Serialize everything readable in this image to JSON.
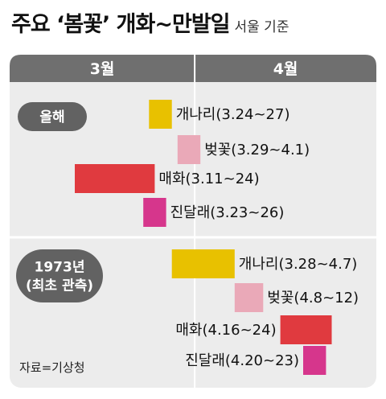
{
  "header": {
    "title": "주요 ‘봄꽃’ 개화~만발일",
    "subtitle": "서울 기준"
  },
  "source": "자료=기상청",
  "colors": {
    "header_band": "#6f6f6f",
    "panel_bg": "#ececec",
    "pill_bg": "#626262",
    "개나리": "#e8c100",
    "벚꽃": "#eaa9b8",
    "매화": "#e03a3f",
    "진달래": "#d6368c"
  },
  "chart_data": {
    "type": "bar",
    "subtype": "gantt",
    "x_axis": {
      "type": "date",
      "range": [
        "03-01",
        "04-30"
      ],
      "tick_labels": [
        "3월",
        "4월"
      ]
    },
    "groups": [
      {
        "name": "올해",
        "items": [
          {
            "flower": "개나리",
            "label": "개나리(3.24~27)",
            "start": "03-24",
            "end": "03-27"
          },
          {
            "flower": "벚꽃",
            "label": "벚꽃(3.29~4.1)",
            "start": "03-29",
            "end": "04-01"
          },
          {
            "flower": "매화",
            "label": "매화(3.11~24)",
            "start": "03-11",
            "end": "03-24"
          },
          {
            "flower": "진달래",
            "label": "진달래(3.23~26)",
            "start": "03-23",
            "end": "03-26"
          }
        ]
      },
      {
        "name": "1973년 (최초 관측)",
        "name_lines": [
          "1973년",
          "(최초 관측)"
        ],
        "items": [
          {
            "flower": "개나리",
            "label": "개나리(3.28~4.7)",
            "start": "03-28",
            "end": "04-07"
          },
          {
            "flower": "벚꽃",
            "label": "벚꽃(4.8~12)",
            "start": "04-08",
            "end": "04-12"
          },
          {
            "flower": "매화",
            "label": "매화(4.16~24)",
            "start": "04-16",
            "end": "04-24"
          },
          {
            "flower": "진달래",
            "label": "진달래(4.20~23)",
            "start": "04-20",
            "end": "04-23"
          }
        ]
      }
    ]
  }
}
